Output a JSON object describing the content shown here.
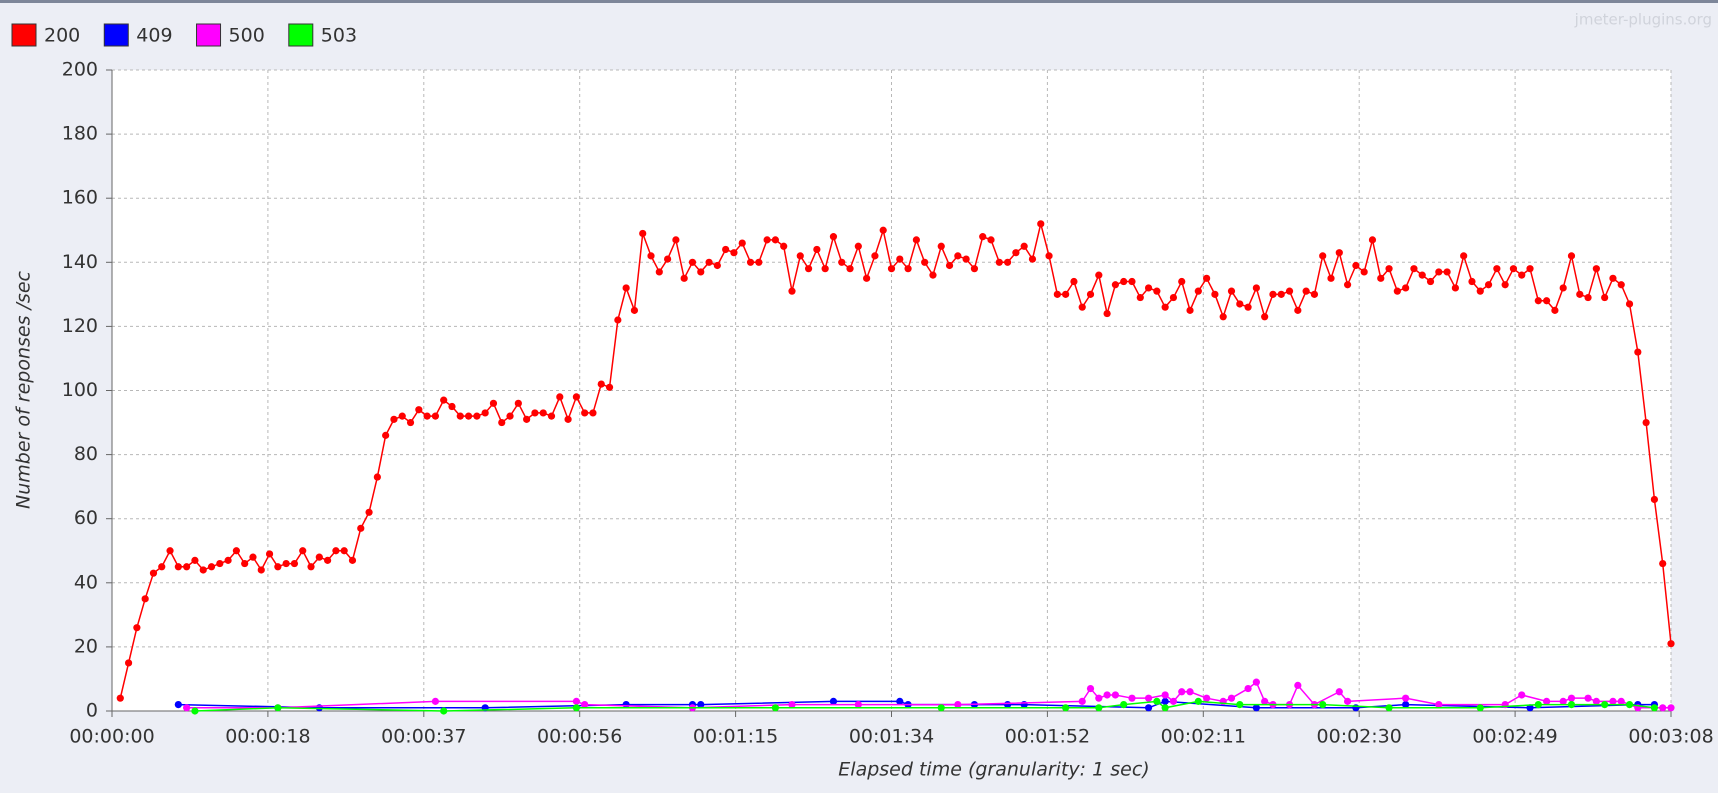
{
  "chart_data": {
    "type": "line",
    "watermark": "jmeter-plugins.org",
    "xlabel": "Elapsed time (granularity: 1 sec)",
    "ylabel": "Number of reponses /sec",
    "xlim": [
      0,
      188
    ],
    "ylim": [
      0,
      200
    ],
    "yticks": [
      0,
      20,
      40,
      60,
      80,
      100,
      120,
      140,
      160,
      180,
      200
    ],
    "xticks": [
      {
        "value": 0,
        "label": "00:00:00"
      },
      {
        "value": 18.8,
        "label": "00:00:18"
      },
      {
        "value": 37.6,
        "label": "00:00:37"
      },
      {
        "value": 56.4,
        "label": "00:00:56"
      },
      {
        "value": 75.2,
        "label": "00:01:15"
      },
      {
        "value": 94,
        "label": "00:01:34"
      },
      {
        "value": 112.8,
        "label": "00:01:52"
      },
      {
        "value": 131.6,
        "label": "00:02:11"
      },
      {
        "value": 150.4,
        "label": "00:02:30"
      },
      {
        "value": 169.2,
        "label": "00:02:49"
      },
      {
        "value": 188,
        "label": "00:03:08"
      }
    ],
    "grid": true,
    "legend": "top-left",
    "series": [
      {
        "name": "200",
        "color": "#ff0000",
        "x": [
          1,
          2,
          3,
          4,
          5,
          6,
          7,
          8,
          9,
          10,
          11,
          12,
          13,
          14,
          15,
          16,
          17,
          18,
          19,
          20,
          21,
          22,
          23,
          24,
          25,
          26,
          27,
          28,
          29,
          30,
          31,
          32,
          33,
          34,
          35,
          36,
          37,
          38,
          39,
          40,
          41,
          42,
          43,
          44,
          45,
          46,
          47,
          48,
          49,
          50,
          51,
          52,
          53,
          54,
          55,
          56,
          57,
          58,
          59,
          60,
          61,
          62,
          63,
          64,
          65,
          66,
          67,
          68,
          69,
          70,
          71,
          72,
          73,
          74,
          75,
          76,
          77,
          78,
          79,
          80,
          81,
          82,
          83,
          84,
          85,
          86,
          87,
          88,
          89,
          90,
          91,
          92,
          93,
          94,
          95,
          96,
          97,
          98,
          99,
          100,
          101,
          102,
          103,
          104,
          105,
          106,
          107,
          108,
          109,
          110,
          111,
          112,
          113,
          114,
          115,
          116,
          117,
          118,
          119,
          120,
          121,
          122,
          123,
          124,
          125,
          126,
          127,
          128,
          129,
          130,
          131,
          132,
          133,
          134,
          135,
          136,
          137,
          138,
          139,
          140,
          141,
          142,
          143,
          144,
          145,
          146,
          147,
          148,
          149,
          150,
          151,
          152,
          153,
          154,
          155,
          156,
          157,
          158,
          159,
          160,
          161,
          162,
          163,
          164,
          165,
          166,
          167,
          168,
          169,
          170,
          171,
          172,
          173,
          174,
          175,
          176,
          177,
          178,
          179,
          180,
          181,
          182,
          183,
          184,
          185,
          186,
          187,
          188
        ],
        "values": [
          4,
          15,
          26,
          35,
          43,
          45,
          50,
          45,
          45,
          47,
          44,
          45,
          46,
          47,
          50,
          46,
          48,
          44,
          49,
          45,
          46,
          46,
          50,
          45,
          48,
          47,
          50,
          50,
          47,
          57,
          62,
          73,
          86,
          91,
          92,
          90,
          94,
          92,
          92,
          97,
          95,
          92,
          92,
          92,
          93,
          96,
          90,
          92,
          96,
          91,
          93,
          93,
          92,
          98,
          91,
          98,
          93,
          93,
          102,
          101,
          122,
          132,
          125,
          149,
          142,
          137,
          141,
          147,
          135,
          140,
          137,
          140,
          139,
          144,
          143,
          146,
          140,
          140,
          147,
          147,
          145,
          131,
          142,
          138,
          144,
          138,
          148,
          140,
          138,
          145,
          135,
          142,
          150,
          138,
          141,
          138,
          147,
          140,
          136,
          145,
          139,
          142,
          141,
          138,
          148,
          147,
          140,
          140,
          143,
          145,
          141,
          152,
          142,
          130,
          130,
          134,
          126,
          130,
          136,
          124,
          133,
          134,
          134,
          129,
          132,
          131,
          126,
          129,
          134,
          125,
          131,
          135,
          130,
          123,
          131,
          127,
          126,
          132,
          123,
          130,
          130,
          131,
          125,
          131,
          130,
          142,
          135,
          143,
          133,
          139,
          137,
          147,
          135,
          138,
          131,
          132,
          138,
          136,
          134,
          137,
          137,
          132,
          142,
          134,
          131,
          133,
          138,
          133,
          138,
          136,
          138,
          128,
          128,
          125,
          132,
          142,
          130,
          129,
          138,
          129,
          135,
          133,
          127,
          112,
          90,
          66,
          46,
          21
        ]
      },
      {
        "name": "409",
        "color": "#0000ff",
        "x": [
          8,
          25,
          45,
          62,
          70,
          71,
          87,
          95,
          96,
          104,
          108,
          110,
          125,
          127,
          138,
          150,
          156,
          171,
          184,
          186
        ],
        "values": [
          2,
          1,
          1,
          2,
          2,
          2,
          3,
          3,
          2,
          2,
          2,
          2,
          1,
          3,
          1,
          1,
          2,
          1,
          2,
          2
        ]
      },
      {
        "name": "500",
        "color": "#ff00ff",
        "x": [
          9,
          20,
          39,
          56,
          57,
          70,
          82,
          90,
          102,
          117,
          118,
          119,
          120,
          121,
          123,
          125,
          127,
          128,
          129,
          130,
          132,
          134,
          135,
          137,
          138,
          139,
          140,
          142,
          143,
          145,
          148,
          149,
          156,
          160,
          168,
          170,
          173,
          175,
          176,
          178,
          179,
          181,
          182,
          184,
          187,
          188
        ],
        "values": [
          1,
          1,
          3,
          3,
          2,
          1,
          2,
          2,
          2,
          3,
          7,
          4,
          5,
          5,
          4,
          4,
          5,
          3,
          6,
          6,
          4,
          3,
          4,
          7,
          9,
          3,
          2,
          2,
          8,
          2,
          6,
          3,
          4,
          2,
          2,
          5,
          3,
          3,
          4,
          4,
          3,
          3,
          3,
          1,
          1,
          1
        ]
      },
      {
        "name": "503",
        "color": "#00ff00",
        "x": [
          10,
          20,
          40,
          56,
          80,
          100,
          115,
          119,
          122,
          126,
          127,
          131,
          136,
          146,
          154,
          165,
          172,
          176,
          180,
          183,
          186
        ],
        "values": [
          0,
          1,
          0,
          1,
          1,
          1,
          1,
          1,
          2,
          3,
          1,
          3,
          2,
          2,
          1,
          1,
          2,
          2,
          2,
          2,
          1
        ]
      }
    ]
  }
}
